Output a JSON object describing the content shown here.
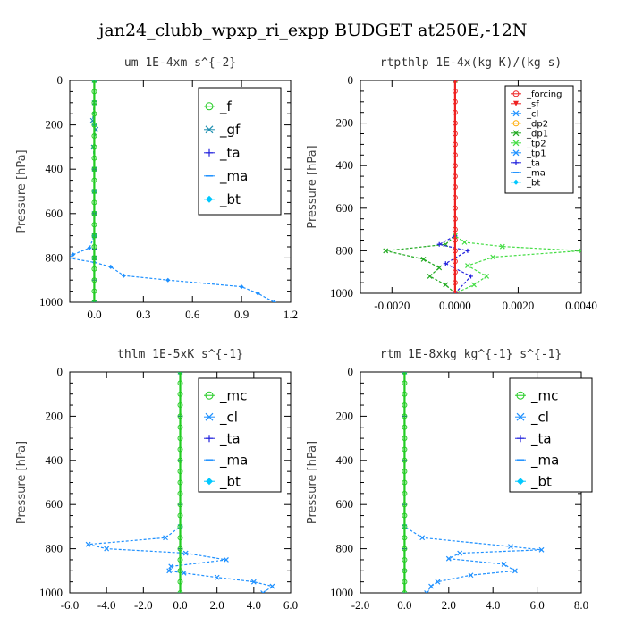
{
  "title": "jan24_clubb_wpxp_ri_expp  BUDGET at250E,-12N",
  "chart_data": [
    {
      "type": "line",
      "title": "um  1E-4xm s^{-2}",
      "ylabel": "Pressure [hPa]",
      "ylim": [
        1000,
        0
      ],
      "xlim": [
        -0.15,
        1.2
      ],
      "xticks": [
        "0.0",
        "0.3",
        "0.6",
        "0.9",
        "1.2"
      ],
      "yticks": [
        "0",
        "200",
        "400",
        "600",
        "800",
        "1000"
      ],
      "legend": [
        "_f",
        "_gf",
        "_ta",
        "_ma",
        "_bt"
      ],
      "series": [
        {
          "name": "_f",
          "color": "#22cc22",
          "marker": "circle",
          "x": [
            0,
            0,
            0,
            0,
            0,
            0,
            0,
            0,
            0,
            0,
            0,
            0,
            0,
            0,
            0,
            0,
            0,
            0,
            0,
            0,
            0
          ],
          "y": [
            0,
            50,
            100,
            150,
            200,
            250,
            300,
            350,
            400,
            450,
            500,
            550,
            600,
            650,
            700,
            750,
            800,
            850,
            900,
            950,
            1000
          ]
        },
        {
          "name": "_gf",
          "color": "#1e8fb0",
          "marker": "x",
          "x": [
            0,
            0,
            -0.01,
            0.01,
            -0.005,
            0,
            0,
            0,
            0,
            0,
            0
          ],
          "y": [
            0,
            100,
            180,
            220,
            300,
            400,
            500,
            600,
            700,
            800,
            1000
          ]
        },
        {
          "name": "_ta",
          "color": "#2222dd",
          "marker": "plus",
          "x": [
            0,
            0,
            0,
            0,
            0,
            0,
            0,
            0
          ],
          "y": [
            0,
            200,
            400,
            600,
            700,
            760,
            900,
            1000
          ]
        },
        {
          "name": "_bt",
          "color": "#1e90ff",
          "marker": "diamond",
          "x": [
            0,
            0,
            0,
            0,
            -0.03,
            -0.13,
            -0.16,
            0.0,
            0.1,
            0.18,
            0.45,
            0.9,
            1.0,
            1.1
          ],
          "y": [
            0,
            200,
            500,
            700,
            755,
            785,
            800,
            820,
            840,
            880,
            900,
            930,
            960,
            1000
          ]
        }
      ]
    },
    {
      "type": "line",
      "title": "rtpthlp  1E-4x(kg K)/(kg s)",
      "ylabel": "Pressure [hPa]",
      "ylim": [
        1000,
        0
      ],
      "xlim": [
        -0.003,
        0.004
      ],
      "xticks": [
        "-0.0020",
        "0.0000",
        "0.0020",
        "0.0040"
      ],
      "yticks": [
        "0",
        "200",
        "400",
        "600",
        "800",
        "1000"
      ],
      "legend": [
        "_forcing",
        "_sf",
        "_cl",
        "_dp2",
        "_dp1",
        "_tp2",
        "_tp1",
        "_ta",
        "_ma",
        "_bt"
      ],
      "series": [
        {
          "name": "_forcing",
          "color": "#ee2222",
          "marker": "circle",
          "x": [
            0,
            0,
            0,
            0,
            0,
            0,
            0,
            0,
            0,
            0,
            0,
            0,
            0,
            0,
            0,
            0,
            0,
            0,
            0,
            0,
            0
          ],
          "y": [
            0,
            50,
            100,
            150,
            200,
            250,
            300,
            350,
            400,
            450,
            500,
            550,
            600,
            650,
            700,
            750,
            800,
            850,
            900,
            950,
            1000
          ]
        },
        {
          "name": "_dp1",
          "color": "#22aa22",
          "marker": "x",
          "x": [
            0,
            0,
            -0.0003,
            -0.0022,
            -0.001,
            -0.0005,
            -0.0008,
            -0.0003,
            0
          ],
          "y": [
            0,
            730,
            770,
            800,
            840,
            880,
            920,
            960,
            1000
          ]
        },
        {
          "name": "_tp2",
          "color": "#44dd44",
          "marker": "x",
          "x": [
            0,
            0,
            0.0003,
            0.0015,
            0.004,
            0.0012,
            0.0004,
            0.001,
            0.0006,
            0
          ],
          "y": [
            0,
            730,
            760,
            780,
            800,
            830,
            870,
            920,
            960,
            1000
          ]
        },
        {
          "name": "_ta",
          "color": "#2222dd",
          "marker": "plus",
          "x": [
            0,
            0,
            -0.0005,
            0.0004,
            -0.0003,
            0.0005,
            0
          ],
          "y": [
            0,
            730,
            770,
            800,
            860,
            920,
            1000
          ]
        }
      ]
    },
    {
      "type": "line",
      "title": "thlm  1E-5xK s^{-1}",
      "ylabel": "Pressure [hPa]",
      "ylim": [
        1000,
        0
      ],
      "xlim": [
        -6,
        6
      ],
      "xticks": [
        "-6.0",
        "-4.0",
        "-2.0",
        "0.0",
        "2.0",
        "4.0",
        "6.0"
      ],
      "yticks": [
        "0",
        "200",
        "400",
        "600",
        "800",
        "1000"
      ],
      "legend": [
        "_mc",
        "_cl",
        "_ta",
        "_ma",
        "_bt"
      ],
      "series": [
        {
          "name": "_mc",
          "color": "#22cc22",
          "marker": "circle",
          "x": [
            0,
            0,
            0,
            0,
            0,
            0,
            0,
            0,
            0,
            0,
            0,
            0,
            0,
            0,
            0,
            0,
            0,
            0,
            0,
            0,
            0
          ],
          "y": [
            0,
            50,
            100,
            150,
            200,
            250,
            300,
            350,
            400,
            450,
            500,
            550,
            600,
            650,
            700,
            750,
            800,
            850,
            900,
            950,
            1000
          ]
        },
        {
          "name": "_cl",
          "color": "#1e90ff",
          "marker": "x",
          "x": [
            0,
            0,
            -0.8,
            -5.0,
            -4.0,
            0.3,
            2.5,
            -0.5,
            -0.6,
            0.2,
            2.0,
            4.0,
            5.0,
            4.5
          ],
          "y": [
            0,
            700,
            750,
            780,
            800,
            820,
            850,
            880,
            900,
            910,
            930,
            950,
            970,
            1000
          ]
        },
        {
          "name": "_ta",
          "color": "#2222dd",
          "marker": "plus",
          "x": [
            0,
            0,
            0,
            0,
            0,
            0,
            0
          ],
          "y": [
            0,
            200,
            400,
            600,
            800,
            900,
            1000
          ]
        }
      ]
    },
    {
      "type": "line",
      "title": "rtm  1E-8xkg kg^{-1} s^{-1}",
      "ylabel": "Pressure [hPa]",
      "ylim": [
        1000,
        0
      ],
      "xlim": [
        -2,
        8
      ],
      "xticks": [
        "-2.0",
        "0.0",
        "2.0",
        "4.0",
        "6.0",
        "8.0"
      ],
      "yticks": [
        "0",
        "200",
        "400",
        "600",
        "800",
        "1000"
      ],
      "legend": [
        "_mc",
        "_cl",
        "_ta",
        "_ma",
        "_bt"
      ],
      "series": [
        {
          "name": "_mc",
          "color": "#22cc22",
          "marker": "circle",
          "x": [
            0,
            0,
            0,
            0,
            0,
            0,
            0,
            0,
            0,
            0,
            0,
            0,
            0,
            0,
            0,
            0,
            0,
            0,
            0,
            0,
            0
          ],
          "y": [
            0,
            50,
            100,
            150,
            200,
            250,
            300,
            350,
            400,
            450,
            500,
            550,
            600,
            650,
            700,
            750,
            800,
            850,
            900,
            950,
            1000
          ]
        },
        {
          "name": "_cl",
          "color": "#1e90ff",
          "marker": "x",
          "x": [
            0,
            0,
            0.8,
            4.8,
            6.2,
            2.5,
            2.0,
            4.5,
            5.0,
            3.0,
            1.5,
            1.2,
            1.0
          ],
          "y": [
            0,
            700,
            750,
            790,
            805,
            820,
            845,
            870,
            900,
            920,
            950,
            970,
            1000
          ]
        },
        {
          "name": "_ta",
          "color": "#2222dd",
          "marker": "plus",
          "x": [
            0,
            0,
            0,
            0,
            0,
            0,
            0
          ],
          "y": [
            0,
            200,
            400,
            600,
            800,
            900,
            1000
          ]
        }
      ]
    }
  ],
  "legend_styles": {
    "_f": {
      "color": "#22cc22",
      "marker": "circle"
    },
    "_gf": {
      "color": "#1e8fb0",
      "marker": "x"
    },
    "_ta": {
      "color": "#2222dd",
      "marker": "plus"
    },
    "_ma": {
      "color": "#1e90ff",
      "marker": "dash"
    },
    "_bt": {
      "color": "#00c8ff",
      "marker": "diamond"
    },
    "_mc": {
      "color": "#22cc22",
      "marker": "circle"
    },
    "_cl": {
      "color": "#1e90ff",
      "marker": "x"
    },
    "_forcing": {
      "color": "#ee2222",
      "marker": "circle"
    },
    "_sf": {
      "color": "#ee2222",
      "marker": "triangle"
    },
    "_dp2": {
      "color": "#ffaa00",
      "marker": "circle"
    },
    "_dp1": {
      "color": "#22aa22",
      "marker": "x"
    },
    "_tp2": {
      "color": "#44dd44",
      "marker": "x"
    },
    "_tp1": {
      "color": "#1e90ff",
      "marker": "x"
    }
  }
}
